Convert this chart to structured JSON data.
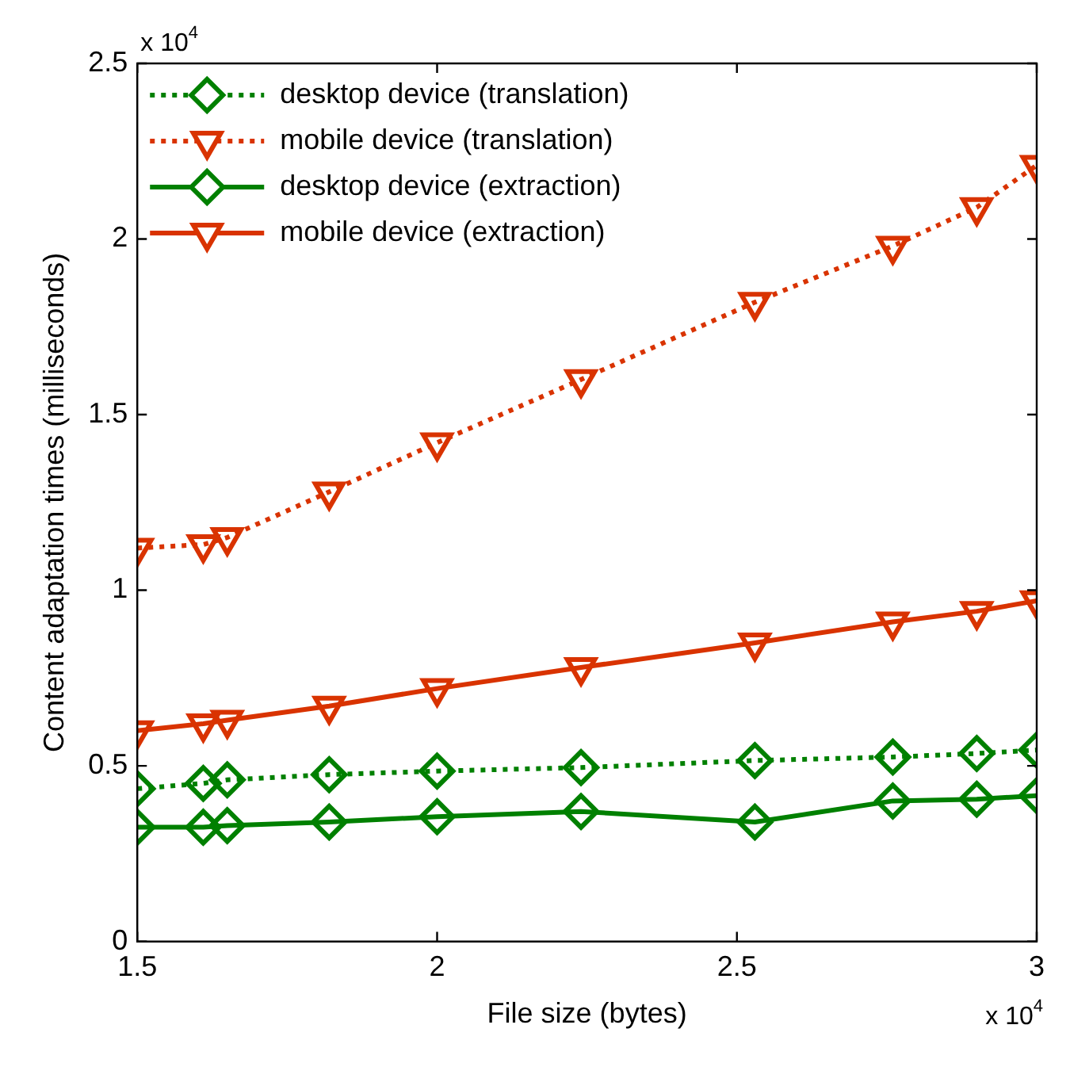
{
  "chart_data": {
    "type": "line",
    "xlabel": "File size (bytes)",
    "ylabel": "Content adaptation times (milliseconds)",
    "x": [
      1.5,
      1.61,
      1.65,
      1.82,
      2.0,
      2.24,
      2.53,
      2.76,
      2.9,
      3.0
    ],
    "series": [
      {
        "name": "desktop device (translation)",
        "color": "#008000",
        "marker": "diamond",
        "line_style": "dotted",
        "values": [
          0.435,
          0.45,
          0.46,
          0.475,
          0.485,
          0.495,
          0.515,
          0.525,
          0.535,
          0.545
        ]
      },
      {
        "name": "mobile device (translation)",
        "color": "#d93300",
        "marker": "triangle",
        "line_style": "dotted",
        "values": [
          1.12,
          1.13,
          1.15,
          1.28,
          1.42,
          1.6,
          1.82,
          1.98,
          2.09,
          2.21
        ]
      },
      {
        "name": "desktop device (extraction)",
        "color": "#008000",
        "marker": "diamond",
        "line_style": "solid",
        "values": [
          0.325,
          0.325,
          0.33,
          0.34,
          0.355,
          0.37,
          0.34,
          0.4,
          0.405,
          0.415
        ]
      },
      {
        "name": "mobile device (extraction)",
        "color": "#d93300",
        "marker": "triangle",
        "line_style": "solid",
        "values": [
          0.6,
          0.62,
          0.63,
          0.67,
          0.72,
          0.78,
          0.85,
          0.91,
          0.94,
          0.97
        ]
      }
    ],
    "xlim": [
      1.5,
      3
    ],
    "xticks": [
      1.5,
      2,
      2.5,
      3
    ],
    "ylim": [
      0,
      2.5
    ],
    "yticks": [
      0,
      0.5,
      1,
      1.5,
      2,
      2.5
    ],
    "annotations": [
      "x 10$^{4}$",
      "x 10$^{4}$"
    ],
    "grid": false,
    "legend": "top left"
  }
}
